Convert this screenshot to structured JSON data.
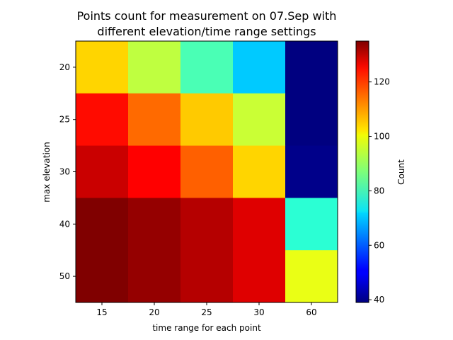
{
  "chart_data": {
    "type": "heatmap",
    "title_lines": [
      "Points count for measurement on 07.Sep with",
      "different elevation/time range settings"
    ],
    "xlabel": "time range for each point",
    "ylabel": "max elevation",
    "x_categories": [
      "15",
      "20",
      "25",
      "30",
      "60"
    ],
    "y_categories": [
      "20",
      "25",
      "30",
      "40",
      "50"
    ],
    "values": [
      [
        103,
        93,
        82,
        70,
        38
      ],
      [
        122,
        113,
        104,
        94,
        38
      ],
      [
        128,
        123,
        114,
        103,
        40
      ],
      [
        135,
        133,
        130,
        126,
        79
      ],
      [
        135,
        133,
        130,
        126,
        97
      ]
    ],
    "colorbar": {
      "label": "Count",
      "min": 39,
      "max": 135,
      "ticks": [
        40,
        60,
        80,
        100,
        120
      ],
      "colormap": "jet"
    }
  }
}
